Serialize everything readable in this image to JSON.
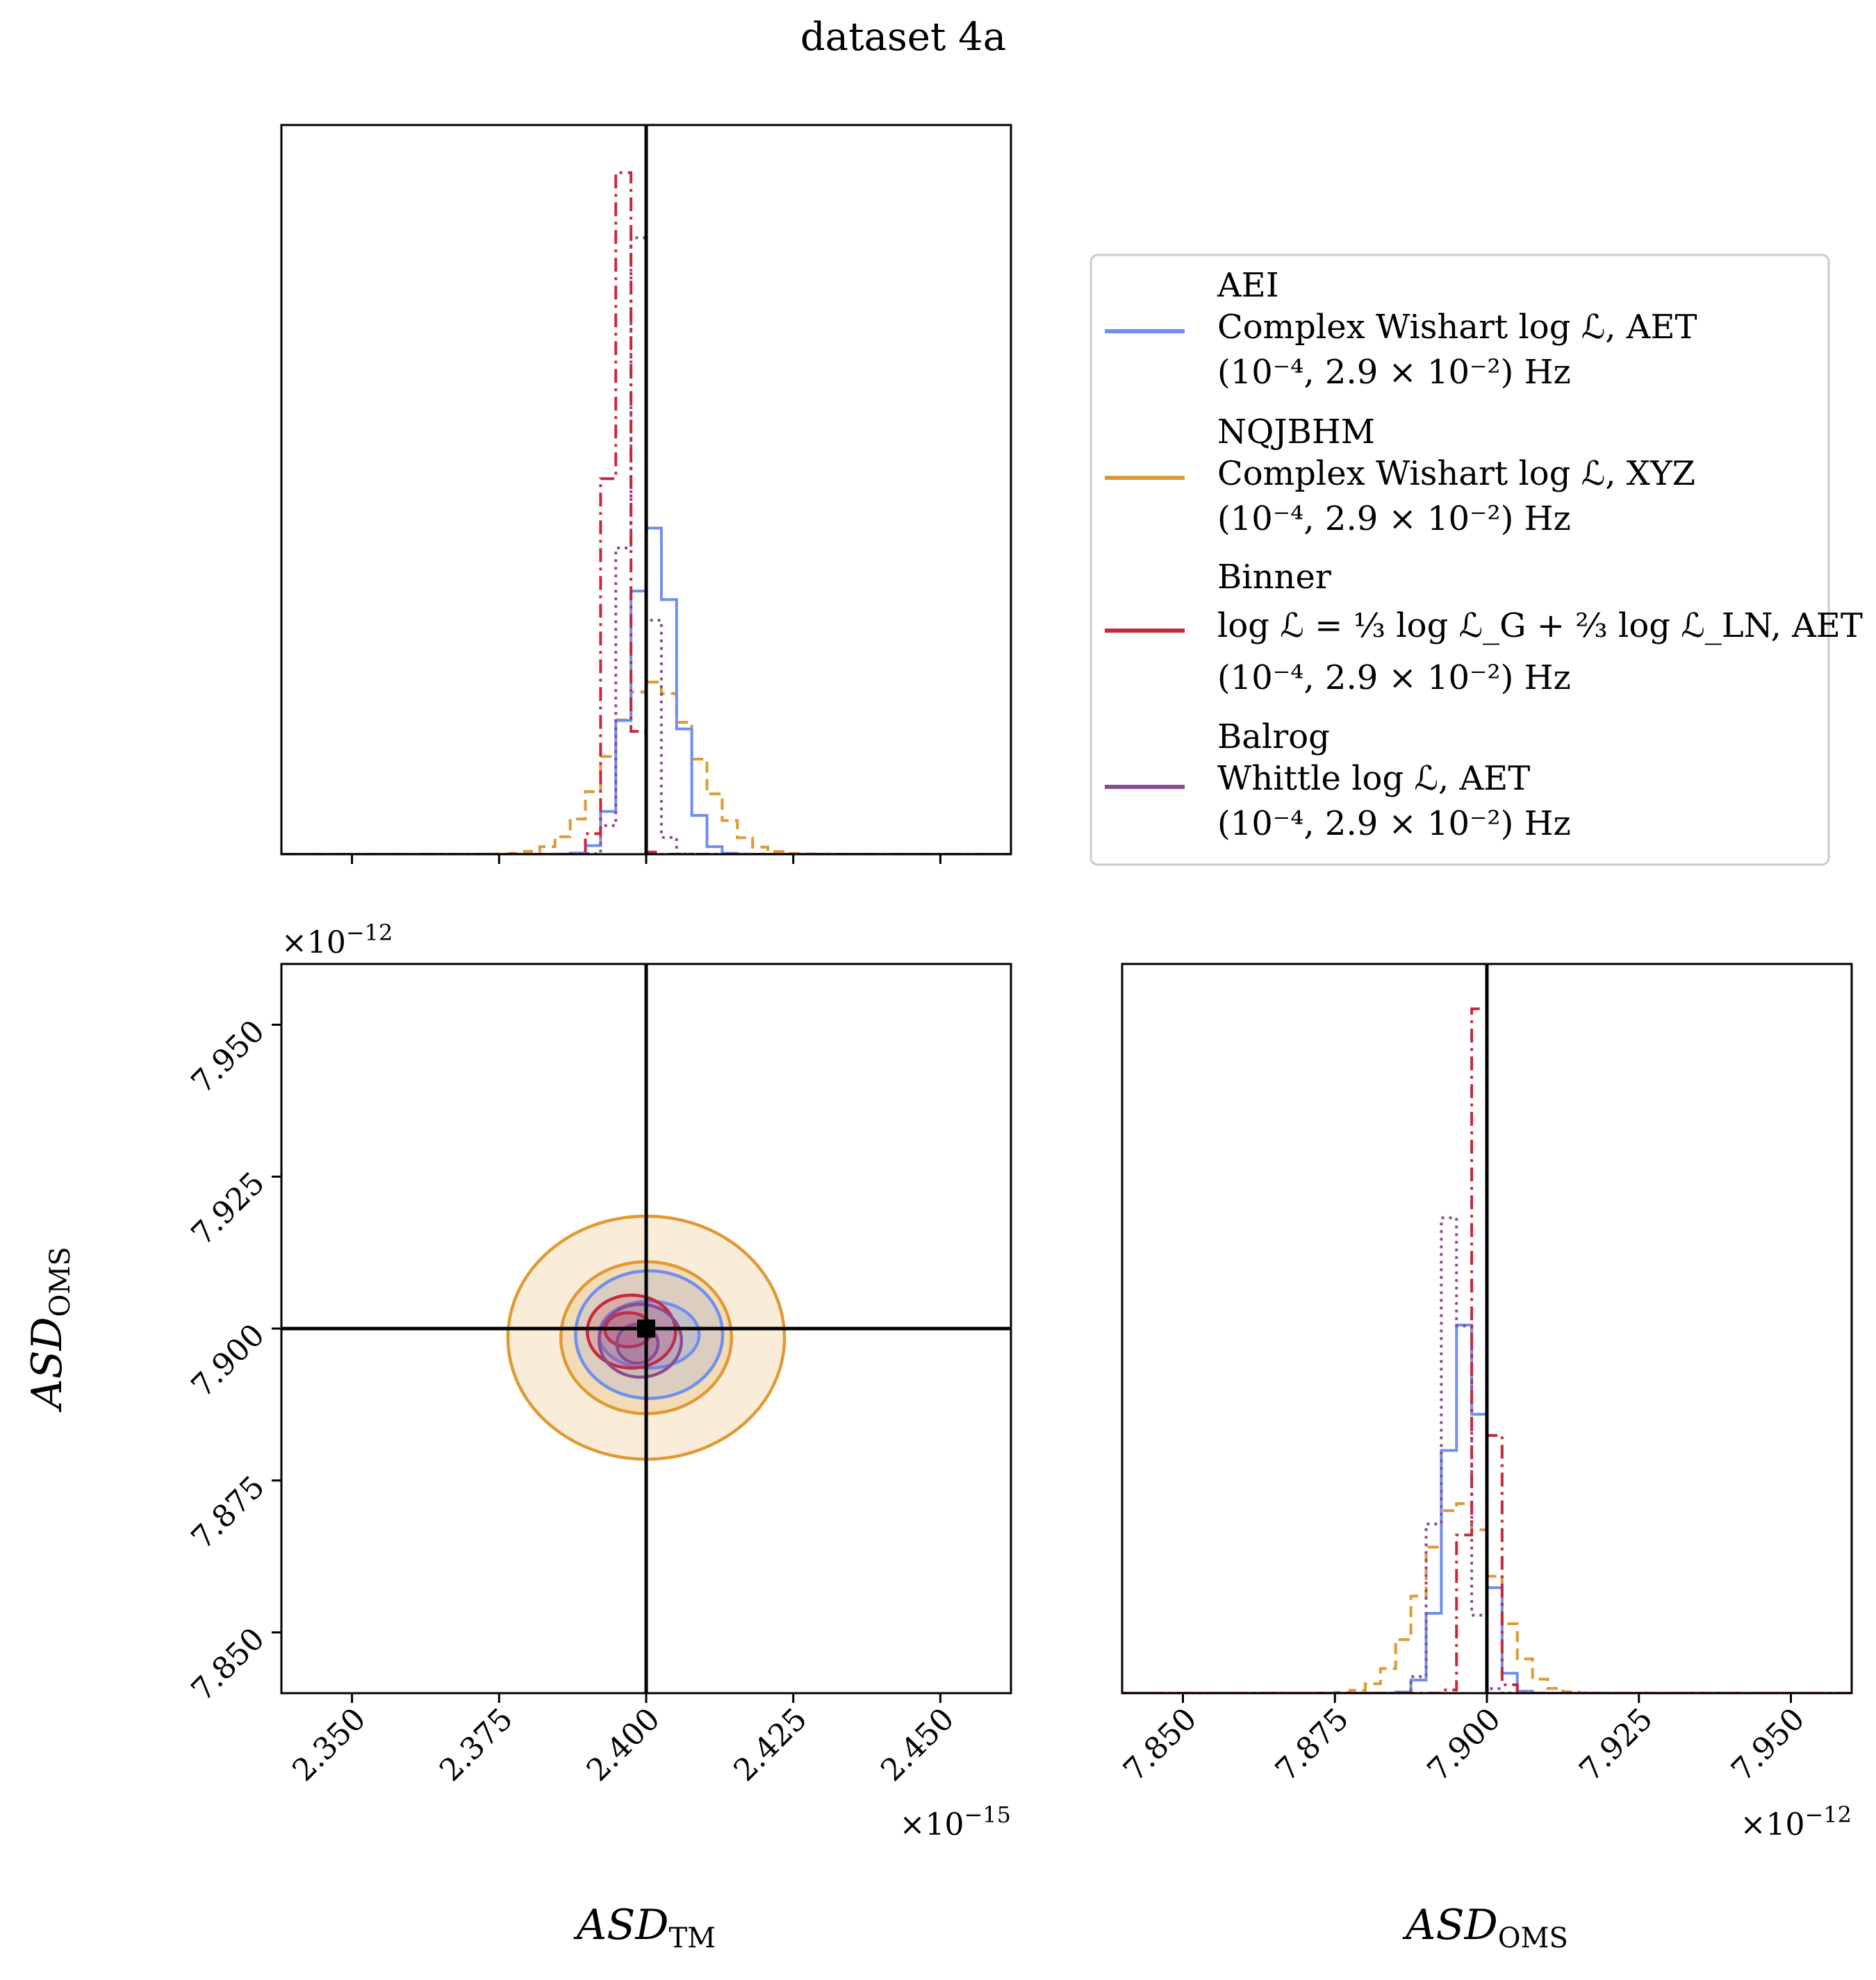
{
  "chart_data": {
    "type": "corner",
    "title": "dataset 4a",
    "colors": {
      "AEI": "#6f8fef",
      "NQJBHM": "#e09a33",
      "Binner": "#c8283c",
      "Balrog": "#8a4b92",
      "truth": "#000000"
    },
    "truth": {
      "ASD_TM": 2.4,
      "ASD_OMS": 7.9
    },
    "axes": {
      "ASD_TM": {
        "label": "ASD",
        "sub": "TM",
        "range": [
          2.338,
          2.462
        ],
        "ticks": [
          "2.350",
          "2.375",
          "2.400",
          "2.425",
          "2.450"
        ],
        "tick_values": [
          2.35,
          2.375,
          2.4,
          2.425,
          2.45
        ],
        "multiplier": "×10",
        "multiplier_exp": "−15"
      },
      "ASD_OMS": {
        "label": "ASD",
        "sub": "OMS",
        "range": [
          7.84,
          7.96
        ],
        "ticks": [
          "7.850",
          "7.875",
          "7.900",
          "7.925",
          "7.950"
        ],
        "tick_values": [
          7.85,
          7.875,
          7.9,
          7.925,
          7.95
        ],
        "multiplier": "×10",
        "multiplier_exp": "−12"
      }
    },
    "legend": [
      {
        "key": "AEI",
        "line1": "AEI",
        "line2": "Complex Wishart log ℒ, AET",
        "line3": "(10⁻⁴, 2.9 × 10⁻²) Hz",
        "style": "solid"
      },
      {
        "key": "NQJBHM",
        "line1": "NQJBHM",
        "line2": "Complex Wishart log ℒ, XYZ",
        "line3": "(10⁻⁴, 2.9 × 10⁻²) Hz",
        "style": "dashed"
      },
      {
        "key": "Binner",
        "line1": "Binner",
        "line2": "log ℒ = ⅓ log ℒ_G + ⅔ log ℒ_LN, AET",
        "line3": "(10⁻⁴, 2.9 × 10⁻²) Hz",
        "style": "dashdot"
      },
      {
        "key": "Balrog",
        "line1": "Balrog",
        "line2": "Whittle log ℒ, AET",
        "line3": "(10⁻⁴, 2.9 × 10⁻²) Hz",
        "style": "dotted"
      }
    ],
    "hist_TM": {
      "AEI": {
        "mean": 2.4012,
        "sd": 0.0038
      },
      "NQJBHM": {
        "mean": 2.4012,
        "sd": 0.0072
      },
      "Binner": {
        "mean": 2.3955,
        "sd": 0.0017
      },
      "Balrog": {
        "mean": 2.3985,
        "sd": 0.002
      }
    },
    "hist_OMS": {
      "AEI": {
        "mean": 7.8965,
        "sd": 0.003
      },
      "NQJBHM": {
        "mean": 7.8955,
        "sd": 0.0058
      },
      "Binner": {
        "mean": 7.899,
        "sd": 0.0016
      },
      "Balrog": {
        "mean": 7.8945,
        "sd": 0.0022
      }
    },
    "contours": {
      "NQJBHM": [
        {
          "cx": 2.4,
          "cy": 7.8985,
          "rx": 0.0145,
          "ry": 0.0125
        },
        {
          "cx": 2.4,
          "cy": 7.8985,
          "rx": 0.0235,
          "ry": 0.02
        }
      ],
      "AEI": [
        {
          "cx": 2.4005,
          "cy": 7.899,
          "rx": 0.0085,
          "ry": 0.0055
        },
        {
          "cx": 2.4005,
          "cy": 7.899,
          "rx": 0.0125,
          "ry": 0.0105
        }
      ],
      "Binner": [
        {
          "cx": 2.397,
          "cy": 7.8998,
          "rx": 0.004,
          "ry": 0.0028
        },
        {
          "cx": 2.3975,
          "cy": 7.8995,
          "rx": 0.0075,
          "ry": 0.006
        }
      ],
      "Balrog": [
        {
          "cx": 2.3985,
          "cy": 7.8975,
          "rx": 0.0035,
          "ry": 0.0032
        },
        {
          "cx": 2.399,
          "cy": 7.898,
          "rx": 0.007,
          "ry": 0.006
        }
      ]
    }
  }
}
